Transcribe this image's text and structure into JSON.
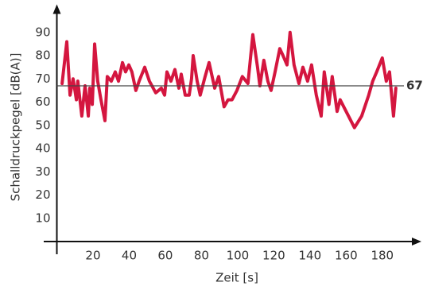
{
  "chart_data": {
    "type": "line",
    "x_label": "Zeit [s]",
    "y_label": "Schalldruckpegel [dB(A)]",
    "xlim": [
      0,
      199
    ],
    "ylim": [
      0,
      100
    ],
    "xticks": [
      20,
      40,
      60,
      80,
      100,
      120,
      140,
      160,
      180
    ],
    "yticks": [
      10,
      20,
      30,
      40,
      50,
      60,
      70,
      80,
      90
    ],
    "reference_line": 67,
    "series": [
      {
        "color": "#d4163f",
        "x": [
          2.9,
          5.5,
          7.3,
          9,
          10.8,
          11.6,
          13.8,
          15.6,
          17.4,
          18.2,
          19.6,
          20.9,
          22.6,
          24.4,
          26.6,
          27.9,
          30.1,
          32.3,
          34.1,
          36.3,
          38,
          39.8,
          41.5,
          43.7,
          45.5,
          48.6,
          51.2,
          54.7,
          57.8,
          59.6,
          60.9,
          63.1,
          65.3,
          67.5,
          68.8,
          71,
          73.2,
          74.5,
          75.4,
          77.6,
          79.3,
          82,
          84.2,
          87.3,
          89.5,
          92.5,
          94.7,
          96.9,
          99.6,
          102.6,
          105.7,
          108.4,
          111,
          112.3,
          114.5,
          116.7,
          118.5,
          120.7,
          123.3,
          125.1,
          127.3,
          129,
          131.2,
          133.9,
          136.1,
          138.7,
          140.9,
          143.5,
          146.2,
          147.9,
          150.5,
          152.3,
          155,
          156.7,
          164.6,
          168.6,
          172.5,
          174.7,
          176.9,
          180,
          182.2,
          184,
          186.2,
          187.5
        ],
        "values": [
          68,
          86,
          63,
          70,
          61,
          69,
          54,
          67,
          54,
          66,
          59,
          85,
          69,
          61,
          52,
          71,
          69,
          73,
          69,
          77,
          73,
          76,
          73,
          65,
          69,
          75,
          69,
          64,
          66,
          63,
          73,
          69,
          74,
          66,
          72,
          63,
          63,
          70,
          80,
          69,
          63,
          71,
          77,
          66,
          71,
          58,
          61,
          61,
          65,
          71,
          68,
          89,
          75,
          67,
          78,
          69,
          65,
          73,
          83,
          80,
          76,
          90,
          76,
          68,
          75,
          69,
          76,
          63,
          54,
          73,
          59,
          71,
          56,
          61,
          49,
          54,
          63,
          69,
          73,
          79,
          69,
          73,
          54,
          66
        ]
      }
    ]
  }
}
